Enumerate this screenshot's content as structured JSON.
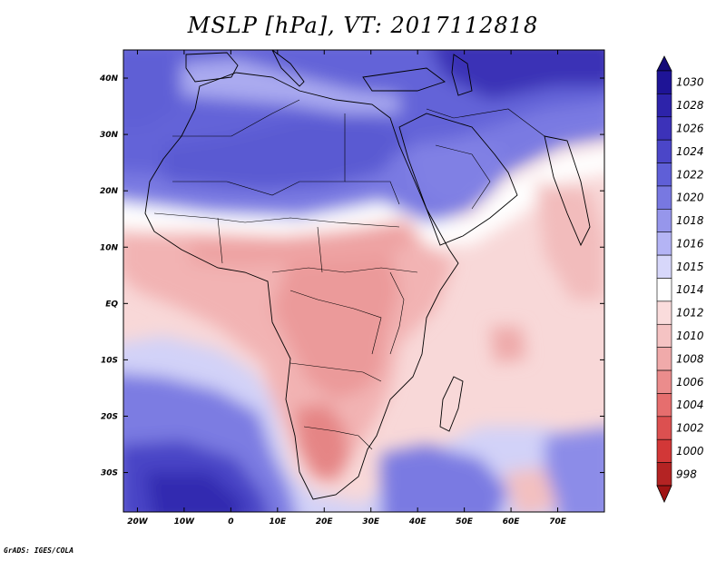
{
  "title": "MSLP [hPa], VT: 2017112818",
  "credit": "GrADS: IGES/COLA",
  "map": {
    "variable": "MSLP",
    "units": "hPa",
    "valid_time": "2017112818",
    "lon_range": [
      -23,
      80
    ],
    "lat_range": [
      -37,
      45
    ],
    "lon_ticks": [
      {
        "value": -20,
        "label": "20W"
      },
      {
        "value": -10,
        "label": "10W"
      },
      {
        "value": 0,
        "label": "0"
      },
      {
        "value": 10,
        "label": "10E"
      },
      {
        "value": 20,
        "label": "20E"
      },
      {
        "value": 30,
        "label": "30E"
      },
      {
        "value": 40,
        "label": "40E"
      },
      {
        "value": 50,
        "label": "50E"
      },
      {
        "value": 60,
        "label": "60E"
      },
      {
        "value": 70,
        "label": "70E"
      }
    ],
    "lat_ticks": [
      {
        "value": 40,
        "label": "40N"
      },
      {
        "value": 30,
        "label": "30N"
      },
      {
        "value": 20,
        "label": "20N"
      },
      {
        "value": 10,
        "label": "10N"
      },
      {
        "value": 0,
        "label": "EQ"
      },
      {
        "value": -10,
        "label": "10S"
      },
      {
        "value": -20,
        "label": "20S"
      },
      {
        "value": -30,
        "label": "30S"
      }
    ]
  },
  "colorbar": {
    "levels": [
      {
        "label": "1030",
        "color": "#1e1496"
      },
      {
        "label": "1028",
        "color": "#2d23aa"
      },
      {
        "label": "1026",
        "color": "#3c32b9"
      },
      {
        "label": "1024",
        "color": "#4b46c8"
      },
      {
        "label": "1022",
        "color": "#5f5fd7"
      },
      {
        "label": "1020",
        "color": "#7878e1"
      },
      {
        "label": "1018",
        "color": "#9696eb"
      },
      {
        "label": "1016",
        "color": "#b4b4f5"
      },
      {
        "label": "1015",
        "color": "#d7d7fa"
      },
      {
        "label": "1014",
        "color": "#ffffff"
      },
      {
        "label": "1012",
        "color": "#fadcdc"
      },
      {
        "label": "1010",
        "color": "#f5c3c3"
      },
      {
        "label": "1008",
        "color": "#f0aaaa"
      },
      {
        "label": "1006",
        "color": "#eb8c8c"
      },
      {
        "label": "1004",
        "color": "#e66e6e"
      },
      {
        "label": "1002",
        "color": "#dc5050"
      },
      {
        "label": "1000",
        "color": "#d23737"
      },
      {
        "label": "998",
        "color": "#b42323"
      }
    ],
    "top_arrow_color": "#140a78",
    "bottom_arrow_color": "#a01414"
  }
}
